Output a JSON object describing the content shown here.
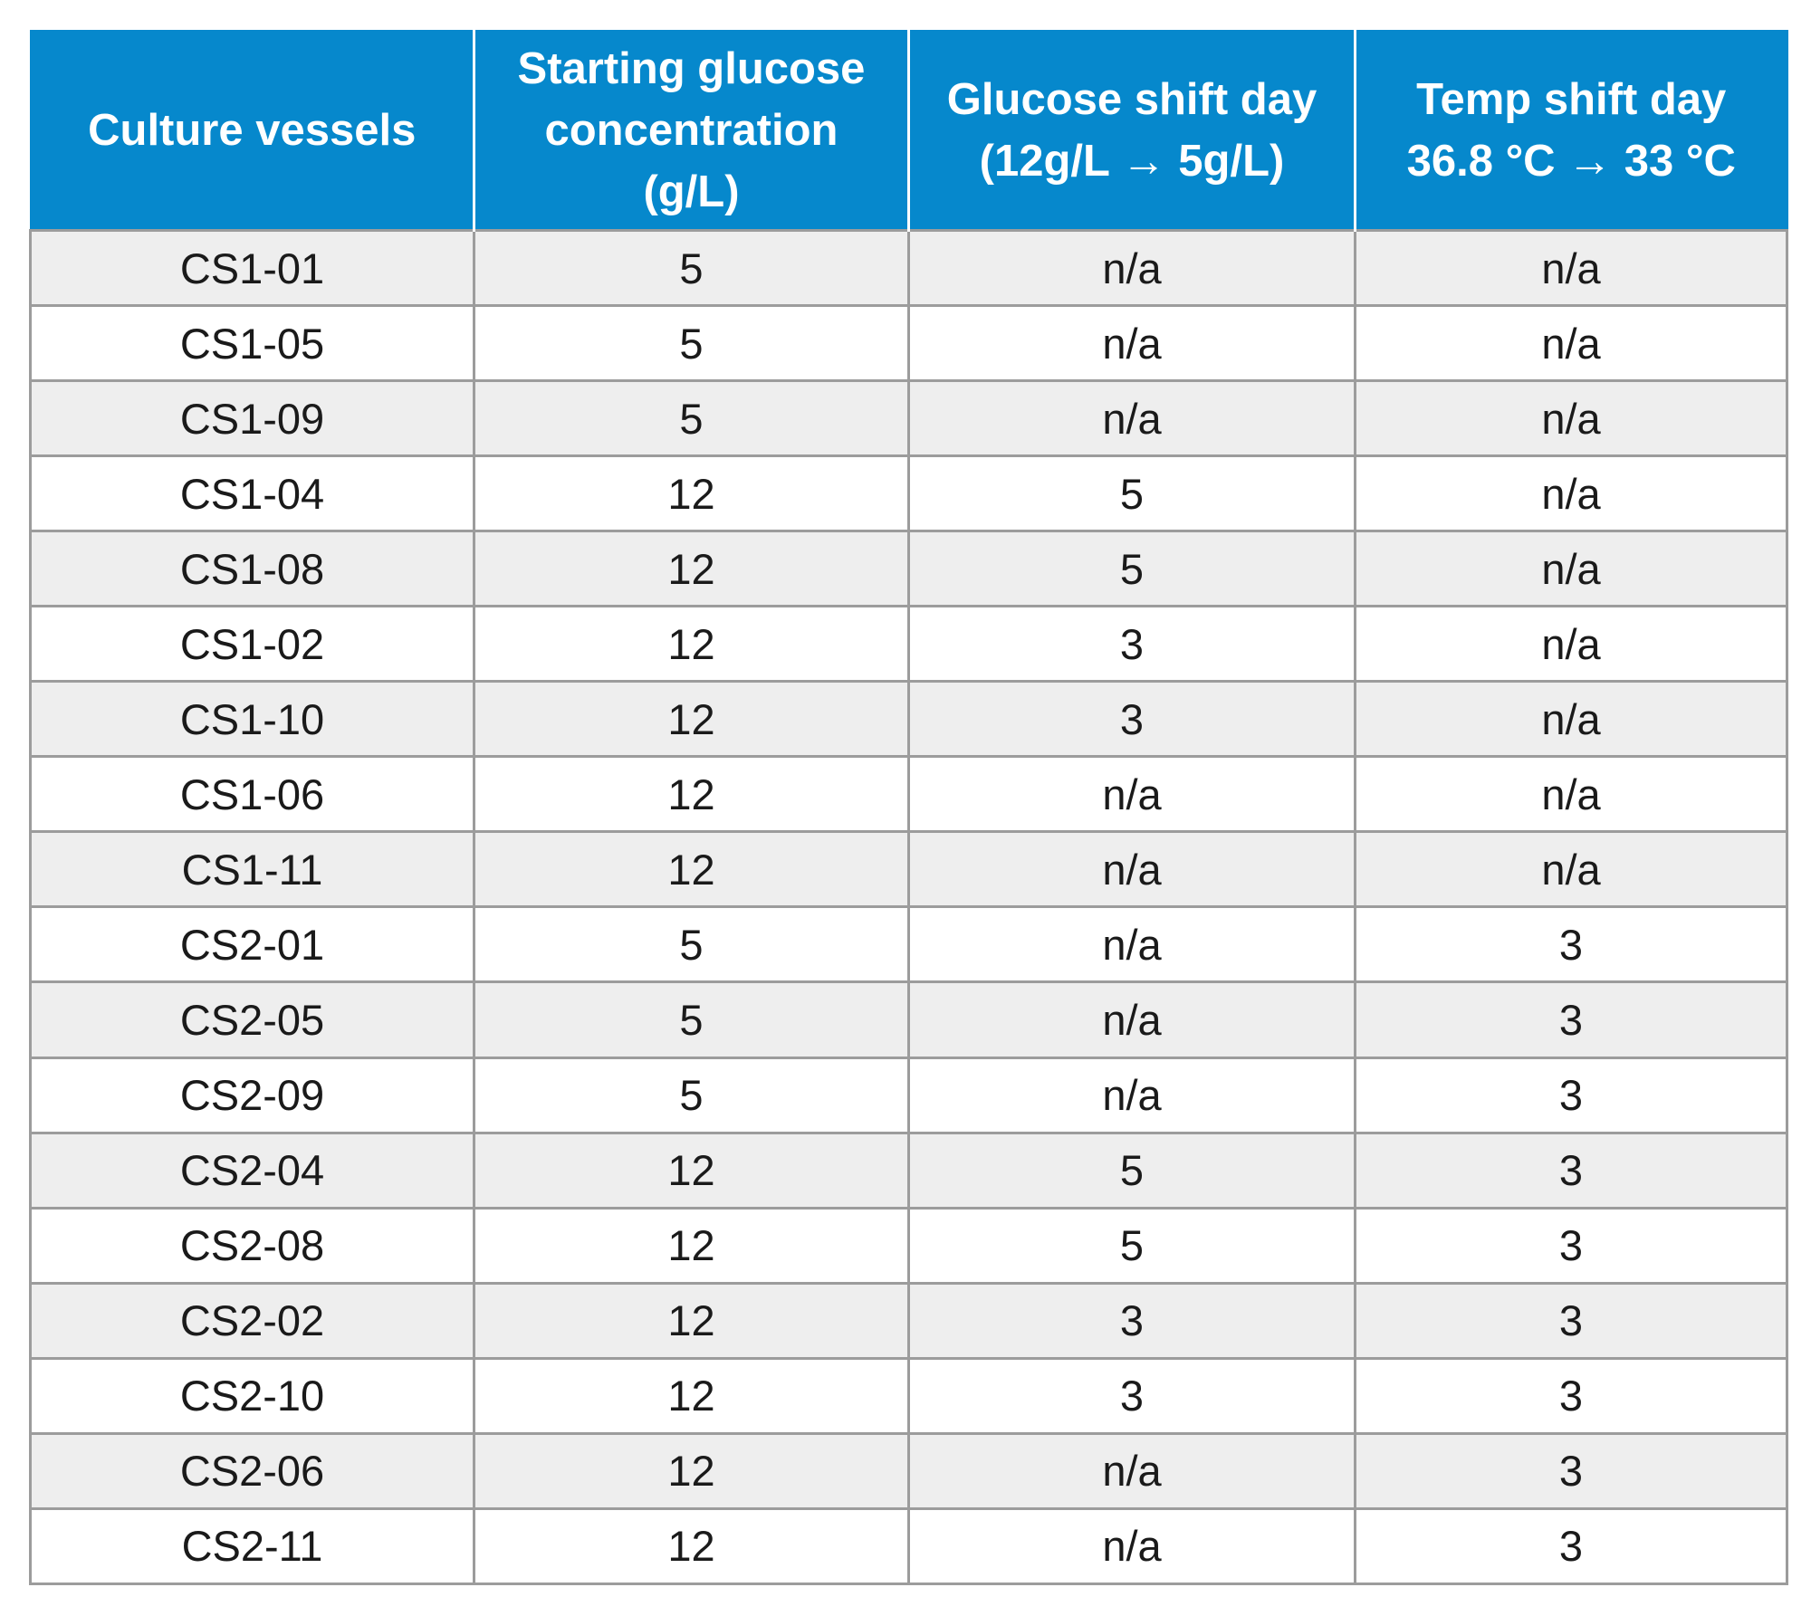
{
  "header": {
    "col1": [
      "Culture vessels"
    ],
    "col2": [
      "Starting glucose",
      "concentration",
      "(g/L)"
    ],
    "col3": [
      "Glucose shift day",
      "(12g/L → 5g/L)"
    ],
    "col4": [
      "Temp shift day",
      "36.8 °C → 33 °C"
    ]
  },
  "rows": [
    [
      "CS1-01",
      "5",
      "n/a",
      "n/a"
    ],
    [
      "CS1-05",
      "5",
      "n/a",
      "n/a"
    ],
    [
      "CS1-09",
      "5",
      "n/a",
      "n/a"
    ],
    [
      "CS1-04",
      "12",
      "5",
      "n/a"
    ],
    [
      "CS1-08",
      "12",
      "5",
      "n/a"
    ],
    [
      "CS1-02",
      "12",
      "3",
      "n/a"
    ],
    [
      "CS1-10",
      "12",
      "3",
      "n/a"
    ],
    [
      "CS1-06",
      "12",
      "n/a",
      "n/a"
    ],
    [
      "CS1-11",
      "12",
      "n/a",
      "n/a"
    ],
    [
      "CS2-01",
      "5",
      "n/a",
      "3"
    ],
    [
      "CS2-05",
      "5",
      "n/a",
      "3"
    ],
    [
      "CS2-09",
      "5",
      "n/a",
      "3"
    ],
    [
      "CS2-04",
      "12",
      "5",
      "3"
    ],
    [
      "CS2-08",
      "12",
      "5",
      "3"
    ],
    [
      "CS2-02",
      "12",
      "3",
      "3"
    ],
    [
      "CS2-10",
      "12",
      "3",
      "3"
    ],
    [
      "CS2-06",
      "12",
      "n/a",
      "3"
    ],
    [
      "CS2-11",
      "12",
      "n/a",
      "3"
    ]
  ],
  "colors": {
    "header_bg": "#0688cc",
    "header_text": "#ffffff",
    "row_alt_bg": "#eeeeee",
    "row_bg": "#ffffff",
    "grid_line": "#9c9c9c"
  }
}
